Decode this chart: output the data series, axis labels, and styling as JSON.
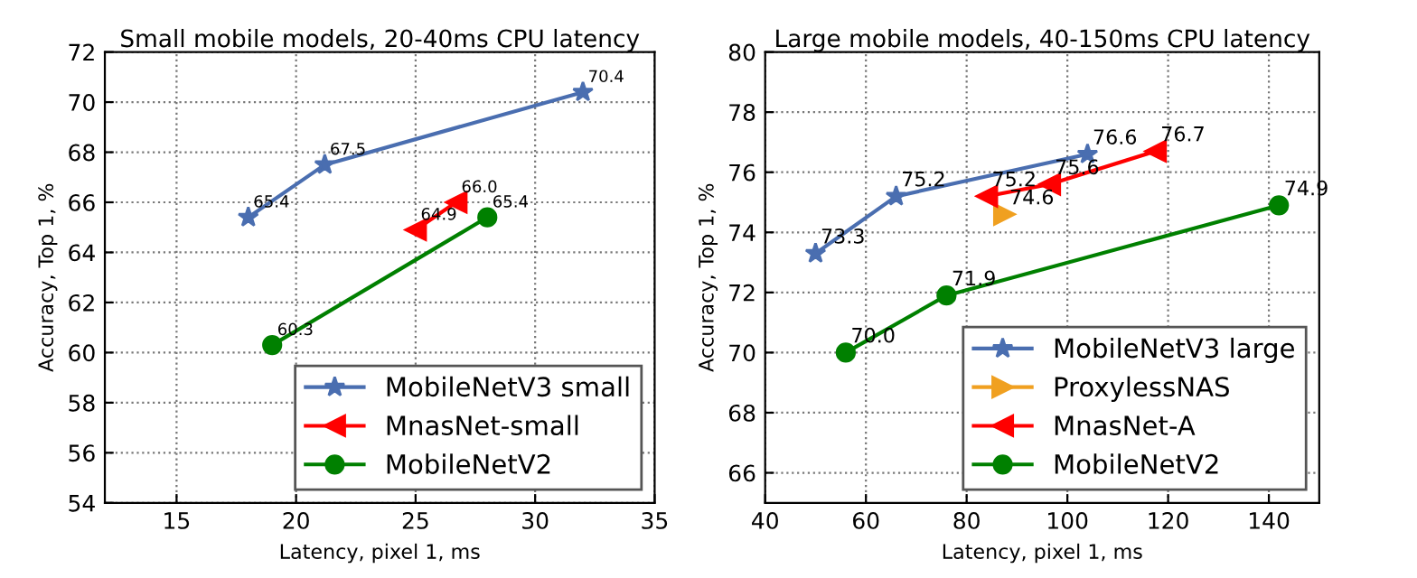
{
  "chart_data": [
    {
      "type": "line",
      "title": "Small mobile models, 20-40ms CPU latency",
      "xlabel": "Latency, pixel 1, ms",
      "ylabel": "Accuracy, Top 1, %",
      "xlim": [
        12,
        35
      ],
      "xticks": [
        15,
        20,
        25,
        30,
        35
      ],
      "ylim": [
        54,
        72
      ],
      "yticks": [
        54,
        56,
        58,
        60,
        62,
        64,
        66,
        68,
        70,
        72
      ],
      "grid": true,
      "legend": "bottom right",
      "line_style": "solid",
      "series": [
        {
          "name": "MobileNetV3 small",
          "color": "#4a6eb0",
          "marker": "star",
          "x": [
            18,
            21.2,
            32
          ],
          "values": [
            65.4,
            67.5,
            70.4
          ],
          "value_labels": [
            "65.4",
            "67.5",
            "70.4"
          ]
        },
        {
          "name": "MnasNet-small",
          "color": "#ff0000",
          "marker": "triangle_left",
          "x": [
            25,
            26.7
          ],
          "values": [
            64.9,
            66.0
          ],
          "value_labels": [
            "64.9",
            "66.0"
          ]
        },
        {
          "name": "MobileNetV2",
          "color": "#008000",
          "marker": "circle",
          "x": [
            19,
            28
          ],
          "values": [
            60.3,
            65.4
          ],
          "value_labels": [
            "60.3",
            "65.4"
          ]
        }
      ]
    },
    {
      "type": "line",
      "title": "Large mobile models, 40-150ms CPU latency",
      "xlabel": "Latency, pixel 1, ms",
      "ylabel": "Accuracy, Top 1, %",
      "xlim": [
        40,
        150
      ],
      "xticks": [
        40,
        60,
        80,
        100,
        120,
        140
      ],
      "ylim": [
        65,
        80
      ],
      "yticks": [
        66,
        68,
        70,
        72,
        74,
        76,
        78,
        80
      ],
      "grid": true,
      "legend": "bottom right",
      "line_style": "solid",
      "series": [
        {
          "name": "MobileNetV3 large",
          "color": "#4a6eb0",
          "marker": "star",
          "x": [
            50,
            66,
            104
          ],
          "values": [
            73.3,
            75.2,
            76.6
          ],
          "value_labels": [
            "73.3",
            "75.2",
            "76.6"
          ]
        },
        {
          "name": "ProxylessNAS",
          "color": "#f0a020",
          "marker": "triangle_right",
          "x": [
            87.5
          ],
          "values": [
            74.6
          ],
          "value_labels": [
            "74.6"
          ]
        },
        {
          "name": "MnasNet-A",
          "color": "#ff0000",
          "marker": "triangle_left",
          "x": [
            84,
            96.5,
            117.5
          ],
          "values": [
            75.2,
            75.6,
            76.7
          ],
          "value_labels": [
            "75.2",
            "75.6",
            "76.7"
          ]
        },
        {
          "name": "MobileNetV2",
          "color": "#008000",
          "marker": "circle",
          "x": [
            56,
            76,
            142
          ],
          "values": [
            70.0,
            71.9,
            74.9
          ],
          "value_labels": [
            "70.0",
            "71.9",
            "74.9"
          ]
        }
      ]
    }
  ]
}
